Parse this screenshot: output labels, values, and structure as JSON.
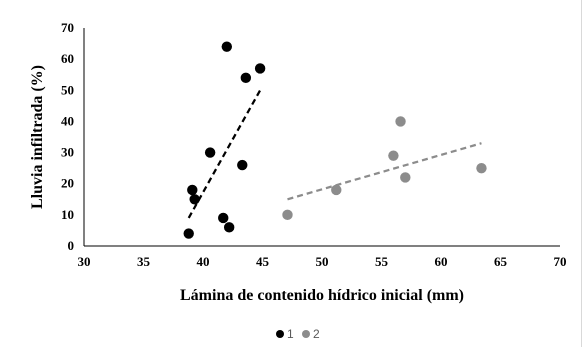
{
  "chart_data": {
    "type": "scatter",
    "xlabel": "Lámina de contenido hídrico inicial (mm)",
    "ylabel": "Lluvia infiltrada (%)",
    "xlim": [
      30,
      70
    ],
    "ylim": [
      0,
      70
    ],
    "x_ticks": [
      30,
      35,
      40,
      45,
      50,
      55,
      60,
      65,
      70
    ],
    "y_ticks": [
      0,
      10,
      20,
      30,
      40,
      50,
      60,
      70
    ],
    "grid": false,
    "legend_position": "bottom",
    "series": [
      {
        "name": "1",
        "color": "#000000",
        "points": [
          {
            "x": 38.8,
            "y": 4
          },
          {
            "x": 39.1,
            "y": 18
          },
          {
            "x": 39.3,
            "y": 15
          },
          {
            "x": 40.6,
            "y": 30
          },
          {
            "x": 41.7,
            "y": 9
          },
          {
            "x": 42.0,
            "y": 64
          },
          {
            "x": 42.2,
            "y": 6
          },
          {
            "x": 43.3,
            "y": 26
          },
          {
            "x": 43.6,
            "y": 54
          },
          {
            "x": 44.8,
            "y": 57
          }
        ],
        "trendline": {
          "style": "dashed",
          "x": [
            38.8,
            44.8
          ],
          "y": [
            9,
            50
          ]
        }
      },
      {
        "name": "2",
        "color": "#8c8c8c",
        "points": [
          {
            "x": 47.1,
            "y": 10
          },
          {
            "x": 51.2,
            "y": 18
          },
          {
            "x": 56.0,
            "y": 29
          },
          {
            "x": 56.6,
            "y": 40
          },
          {
            "x": 57.0,
            "y": 22
          },
          {
            "x": 63.4,
            "y": 25
          }
        ],
        "trendline": {
          "style": "dashed",
          "x": [
            47.1,
            63.4
          ],
          "y": [
            15,
            33
          ]
        }
      }
    ]
  }
}
